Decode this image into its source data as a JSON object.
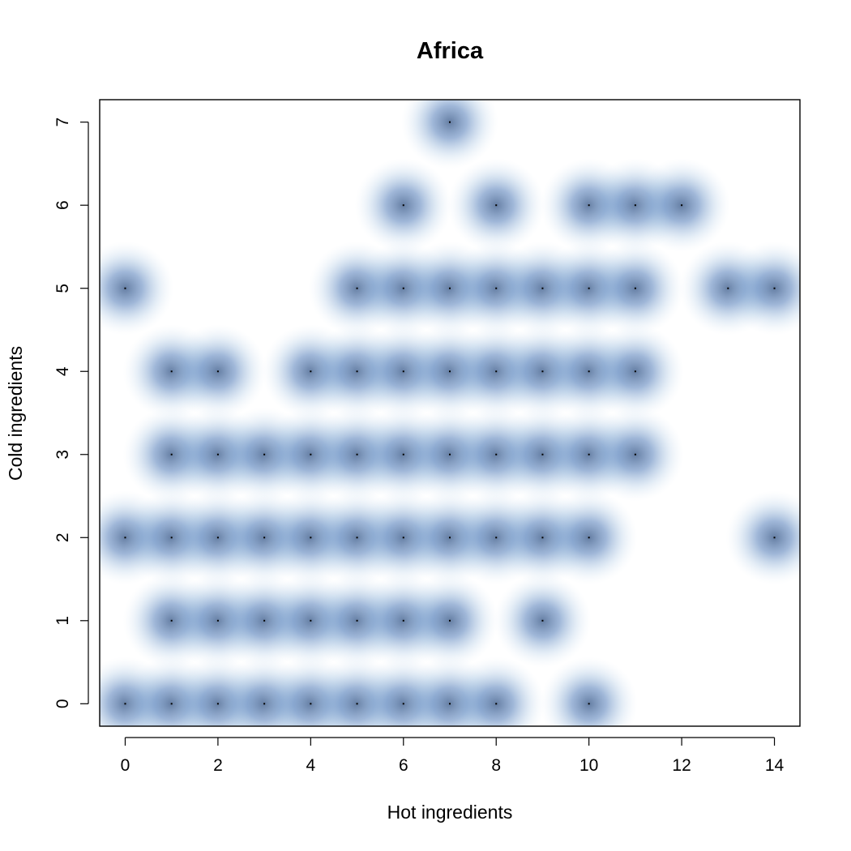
{
  "chart_data": {
    "type": "scatter",
    "title": "Africa",
    "xlabel": "Hot ingredients",
    "ylabel": "Cold ingredients",
    "xlim": [
      -0.55,
      14.55
    ],
    "ylim": [
      -0.27,
      7.27
    ],
    "xticks": [
      "0",
      "2",
      "4",
      "6",
      "8",
      "10",
      "12",
      "14"
    ],
    "yticks": [
      "0",
      "1",
      "2",
      "3",
      "4",
      "5",
      "6",
      "7"
    ],
    "grid": false,
    "legend": "none",
    "render": "smoothScatter",
    "colors": {
      "density_low": "#ffffff",
      "density_high": "#08306b",
      "point": "#000000",
      "frame": "#000000"
    },
    "points": [
      {
        "x": 7,
        "y": 7
      },
      {
        "x": 6,
        "y": 6
      },
      {
        "x": 8,
        "y": 6
      },
      {
        "x": 10,
        "y": 6
      },
      {
        "x": 11,
        "y": 6
      },
      {
        "x": 12,
        "y": 6
      },
      {
        "x": 0,
        "y": 5
      },
      {
        "x": 5,
        "y": 5
      },
      {
        "x": 6,
        "y": 5
      },
      {
        "x": 7,
        "y": 5
      },
      {
        "x": 8,
        "y": 5
      },
      {
        "x": 9,
        "y": 5
      },
      {
        "x": 10,
        "y": 5
      },
      {
        "x": 11,
        "y": 5
      },
      {
        "x": 13,
        "y": 5
      },
      {
        "x": 14,
        "y": 5
      },
      {
        "x": 1,
        "y": 4
      },
      {
        "x": 2,
        "y": 4
      },
      {
        "x": 4,
        "y": 4
      },
      {
        "x": 5,
        "y": 4
      },
      {
        "x": 6,
        "y": 4
      },
      {
        "x": 7,
        "y": 4
      },
      {
        "x": 8,
        "y": 4
      },
      {
        "x": 9,
        "y": 4
      },
      {
        "x": 10,
        "y": 4
      },
      {
        "x": 11,
        "y": 4
      },
      {
        "x": 1,
        "y": 3
      },
      {
        "x": 2,
        "y": 3
      },
      {
        "x": 3,
        "y": 3
      },
      {
        "x": 4,
        "y": 3
      },
      {
        "x": 5,
        "y": 3
      },
      {
        "x": 6,
        "y": 3
      },
      {
        "x": 7,
        "y": 3
      },
      {
        "x": 8,
        "y": 3
      },
      {
        "x": 9,
        "y": 3
      },
      {
        "x": 10,
        "y": 3
      },
      {
        "x": 11,
        "y": 3
      },
      {
        "x": 0,
        "y": 2
      },
      {
        "x": 1,
        "y": 2
      },
      {
        "x": 2,
        "y": 2
      },
      {
        "x": 3,
        "y": 2
      },
      {
        "x": 4,
        "y": 2
      },
      {
        "x": 5,
        "y": 2
      },
      {
        "x": 6,
        "y": 2
      },
      {
        "x": 7,
        "y": 2
      },
      {
        "x": 8,
        "y": 2
      },
      {
        "x": 9,
        "y": 2
      },
      {
        "x": 10,
        "y": 2
      },
      {
        "x": 14,
        "y": 2
      },
      {
        "x": 1,
        "y": 1
      },
      {
        "x": 2,
        "y": 1
      },
      {
        "x": 3,
        "y": 1
      },
      {
        "x": 4,
        "y": 1
      },
      {
        "x": 5,
        "y": 1
      },
      {
        "x": 6,
        "y": 1
      },
      {
        "x": 7,
        "y": 1
      },
      {
        "x": 9,
        "y": 1
      },
      {
        "x": 0,
        "y": 0
      },
      {
        "x": 1,
        "y": 0
      },
      {
        "x": 2,
        "y": 0
      },
      {
        "x": 3,
        "y": 0
      },
      {
        "x": 4,
        "y": 0
      },
      {
        "x": 5,
        "y": 0
      },
      {
        "x": 6,
        "y": 0
      },
      {
        "x": 7,
        "y": 0
      },
      {
        "x": 8,
        "y": 0
      },
      {
        "x": 10,
        "y": 0
      }
    ]
  }
}
